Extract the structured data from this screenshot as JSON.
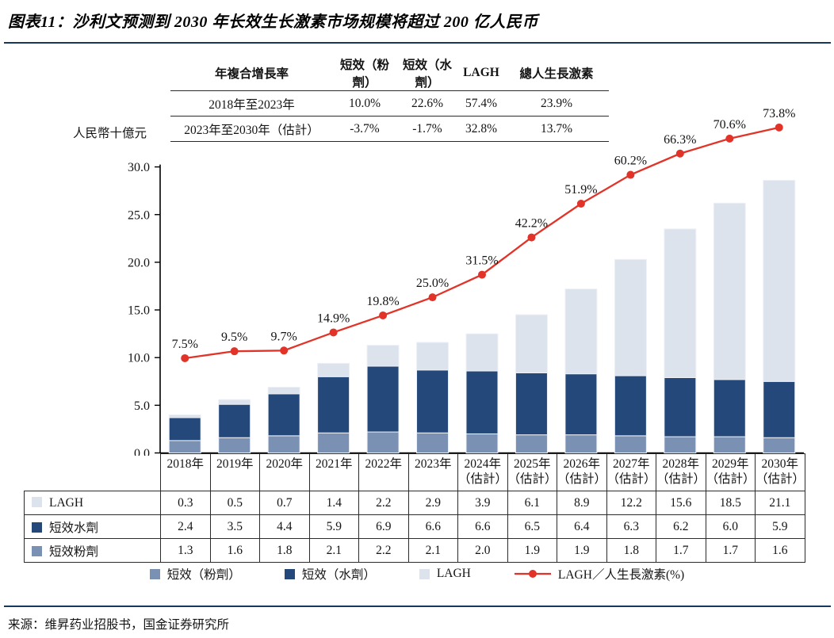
{
  "title": "图表11：沙利文预测到 2030 年长效生长激素市场规模将超过 200 亿人民币",
  "source": "来源：维昇药业招股书，国金证券研究所",
  "colors": {
    "powder": "#7B91B3",
    "water": "#234879",
    "lagh": "#DCE3ED",
    "line": "#E23328",
    "rule": "#17375E",
    "border": "#2b2b2b",
    "text": "#141414"
  },
  "cagr_table": {
    "headers": [
      "年複合增長率",
      "短效（粉劑）",
      "短效（水劑）",
      "LAGH",
      "總人生長激素"
    ],
    "rows": [
      {
        "label": "2018年至2023年",
        "values": [
          "10.0%",
          "22.6%",
          "57.4%",
          "23.9%"
        ]
      },
      {
        "label": "2023年至2030年（估計）",
        "values": [
          "-3.7%",
          "-1.7%",
          "32.8%",
          "13.7%"
        ]
      }
    ]
  },
  "chart_data": {
    "type": "bar",
    "subtype": "stacked-bar-with-line",
    "unit_label": "人民幣十億元",
    "ylim": [
      0,
      30
    ],
    "y_ticks": [
      "0.0",
      "5.0",
      "10.0",
      "15.0",
      "20.0",
      "25.0",
      "30.0"
    ],
    "grid": "off",
    "legend_position": "bottom",
    "categories": [
      "2018年",
      "2019年",
      "2020年",
      "2021年",
      "2022年",
      "2023年",
      "2024年",
      "2025年",
      "2026年",
      "2027年",
      "2028年",
      "2029年",
      "2030年"
    ],
    "category_notes": [
      "",
      "",
      "",
      "",
      "",
      "",
      "（估計）",
      "（估計）",
      "（估計）",
      "（估計）",
      "（估計）",
      "（估計）",
      "（估計）"
    ],
    "series": [
      {
        "key": "powder",
        "name": "短效（粉劑）",
        "values": [
          1.3,
          1.6,
          1.8,
          2.1,
          2.2,
          2.1,
          2.0,
          1.9,
          1.9,
          1.8,
          1.7,
          1.7,
          1.6
        ]
      },
      {
        "key": "water",
        "name": "短效（水劑）",
        "values": [
          2.4,
          3.5,
          4.4,
          5.9,
          6.9,
          6.6,
          6.6,
          6.5,
          6.4,
          6.3,
          6.2,
          6.0,
          5.9
        ]
      },
      {
        "key": "lagh",
        "name": "LAGH",
        "values": [
          0.3,
          0.5,
          0.7,
          1.4,
          2.2,
          2.9,
          3.9,
          6.1,
          8.9,
          12.2,
          15.6,
          18.5,
          21.1
        ]
      }
    ],
    "line": {
      "key": "line",
      "name": "LAGH／人生長激素(%)",
      "values": [
        7.5,
        9.5,
        9.7,
        14.9,
        19.8,
        25.0,
        31.5,
        42.2,
        51.9,
        60.2,
        66.3,
        70.6,
        73.8
      ],
      "labels": [
        "7.5%",
        "9.5%",
        "9.7%",
        "14.9%",
        "19.8%",
        "25.0%",
        "31.5%",
        "42.2%",
        "51.9%",
        "60.2%",
        "66.3%",
        "70.6%",
        "73.8%"
      ]
    }
  },
  "data_table": {
    "rows": [
      {
        "key": "lagh",
        "label": "LAGH",
        "values": [
          "0.3",
          "0.5",
          "0.7",
          "1.4",
          "2.2",
          "2.9",
          "3.9",
          "6.1",
          "8.9",
          "12.2",
          "15.6",
          "18.5",
          "21.1"
        ]
      },
      {
        "key": "water",
        "label": "短效水劑",
        "values": [
          "2.4",
          "3.5",
          "4.4",
          "5.9",
          "6.9",
          "6.6",
          "6.6",
          "6.5",
          "6.4",
          "6.3",
          "6.2",
          "6.0",
          "5.9"
        ]
      },
      {
        "key": "powder",
        "label": "短效粉劑",
        "values": [
          "1.3",
          "1.6",
          "1.8",
          "2.1",
          "2.2",
          "2.1",
          "2.0",
          "1.9",
          "1.9",
          "1.8",
          "1.7",
          "1.7",
          "1.6"
        ]
      }
    ]
  },
  "legend": {
    "items": [
      {
        "key": "powder",
        "label": "短效（粉劑）",
        "marker": "square"
      },
      {
        "key": "water",
        "label": "短效（水劑）",
        "marker": "square"
      },
      {
        "key": "lagh",
        "label": "LAGH",
        "marker": "square"
      },
      {
        "key": "line",
        "label": "LAGH／人生長激素(%)",
        "marker": "line-dot"
      }
    ]
  }
}
